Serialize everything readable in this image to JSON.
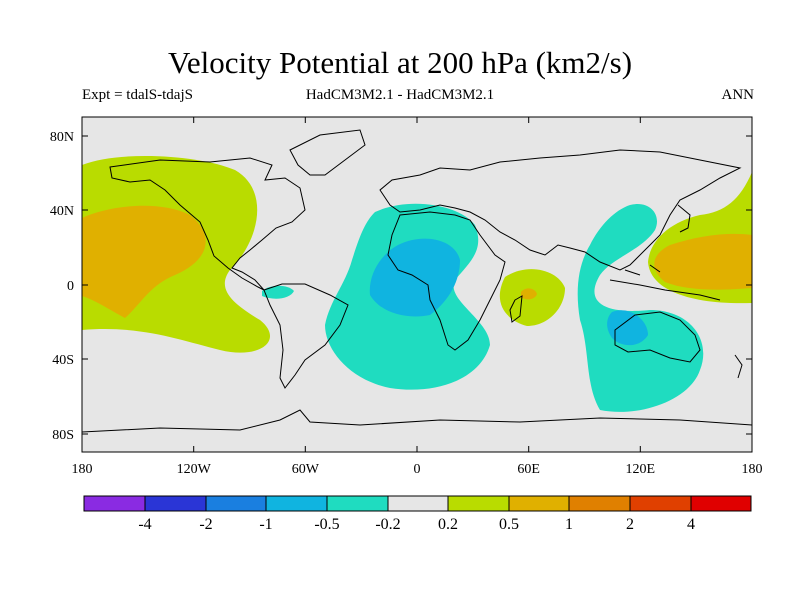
{
  "title": "Velocity Potential at 200 hPa (km2/s)",
  "subtitle_left": "Expt = tdalS-tdajS",
  "subtitle_center": "HadCM3M2.1 - HadCM3M2.1",
  "subtitle_right": "ANN",
  "map": {
    "projection": "cylindrical equidistant",
    "lon_range": [
      -180,
      180
    ],
    "lat_range": [
      -90,
      90
    ],
    "background_color": "#e6e6e6",
    "y_ticks": [
      {
        "lat": 80,
        "label": "80N"
      },
      {
        "lat": 40,
        "label": "40N"
      },
      {
        "lat": 0,
        "label": "0"
      },
      {
        "lat": -40,
        "label": "40S"
      },
      {
        "lat": -80,
        "label": "80S"
      }
    ],
    "x_ticks": [
      {
        "lon": -180,
        "label": "180"
      },
      {
        "lon": -120,
        "label": "120W"
      },
      {
        "lon": -60,
        "label": "60W"
      },
      {
        "lon": 0,
        "label": "0"
      },
      {
        "lon": 60,
        "label": "60E"
      },
      {
        "lon": 120,
        "label": "120E"
      },
      {
        "lon": 180,
        "label": "180"
      }
    ]
  },
  "colorbar": {
    "labels": [
      "-4",
      "-2",
      "-1",
      "-0.5",
      "-0.2",
      "0.2",
      "0.5",
      "1",
      "2",
      "4"
    ],
    "colors": [
      "#8a2be2",
      "#2a35d6",
      "#1a7fe0",
      "#10b4e0",
      "#1fdcc0",
      "#e6e6e6",
      "#b9dc00",
      "#e0b000",
      "#e08000",
      "#e04000",
      "#e00000"
    ]
  }
}
